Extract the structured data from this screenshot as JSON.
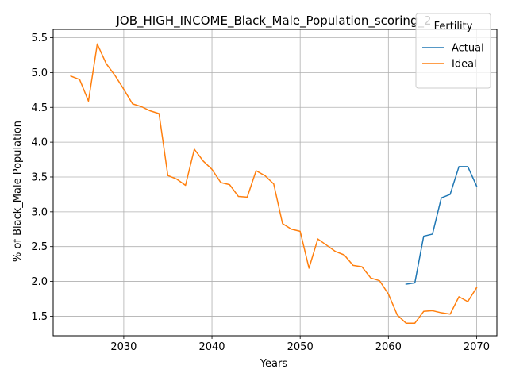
{
  "chart_data": {
    "type": "line",
    "title": "JOB_HIGH_INCOME_Black_Male_Population_scoring_2",
    "xlabel": "Years",
    "ylabel": "% of Black_Male Population",
    "xlim": [
      2022,
      2072.3
    ],
    "ylim": [
      1.22,
      5.62
    ],
    "xticks": [
      2030,
      2040,
      2050,
      2060,
      2070
    ],
    "yticks": [
      1.5,
      2.0,
      2.5,
      3.0,
      3.5,
      4.0,
      4.5,
      5.0,
      5.5
    ],
    "grid": true,
    "legend": {
      "title": "Fertility",
      "placement": "top-right"
    },
    "series": [
      {
        "name": "Actual",
        "color": "#1f77b4",
        "x": [
          2062,
          2063,
          2064,
          2065,
          2066,
          2067,
          2068,
          2069,
          2070
        ],
        "y": [
          1.96,
          1.98,
          2.65,
          2.68,
          3.2,
          3.25,
          3.65,
          3.65,
          3.37
        ]
      },
      {
        "name": "Ideal",
        "color": "#ff7f0e",
        "x": [
          2024,
          2025,
          2026,
          2027,
          2028,
          2029,
          2030,
          2031,
          2032,
          2033,
          2034,
          2035,
          2036,
          2037,
          2038,
          2039,
          2040,
          2041,
          2042,
          2043,
          2044,
          2045,
          2046,
          2047,
          2048,
          2049,
          2050,
          2051,
          2052,
          2053,
          2054,
          2055,
          2056,
          2057,
          2058,
          2059,
          2060,
          2061,
          2062,
          2063,
          2064,
          2065,
          2066,
          2067,
          2068,
          2069,
          2070
        ],
        "y": [
          4.95,
          4.9,
          4.59,
          5.41,
          5.13,
          4.96,
          4.76,
          4.55,
          4.51,
          4.45,
          4.41,
          3.52,
          3.47,
          3.38,
          3.9,
          3.73,
          3.61,
          3.42,
          3.39,
          3.22,
          3.21,
          3.59,
          3.52,
          3.4,
          2.83,
          2.75,
          2.72,
          2.19,
          2.61,
          2.52,
          2.43,
          2.38,
          2.23,
          2.21,
          2.05,
          2.01,
          1.82,
          1.52,
          1.4,
          1.4,
          1.57,
          1.58,
          1.55,
          1.53,
          1.78,
          1.71,
          1.91
        ]
      }
    ]
  }
}
